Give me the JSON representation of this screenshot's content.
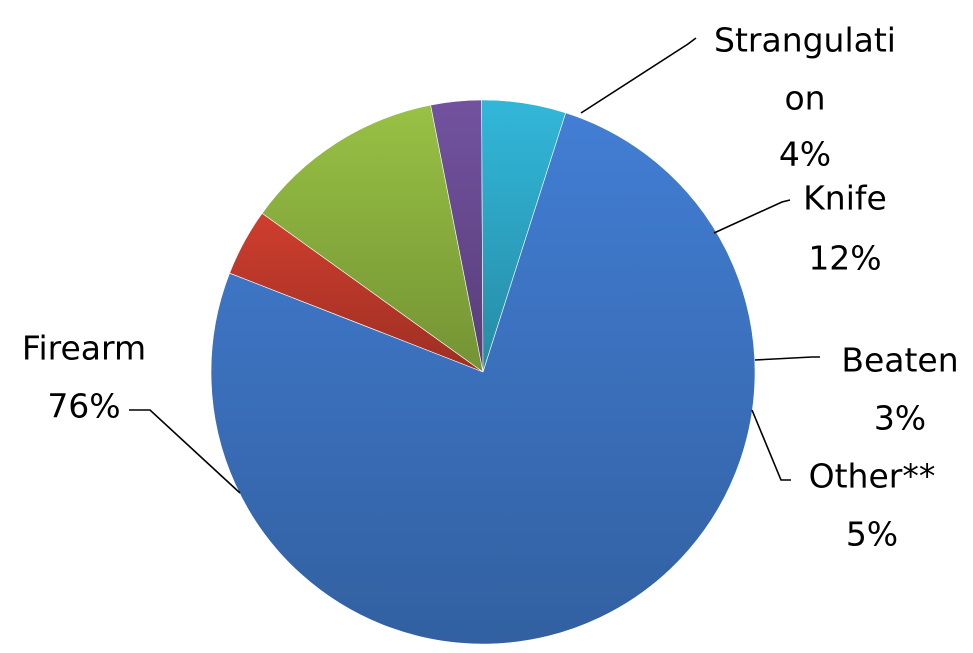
{
  "chart_data": {
    "type": "pie",
    "title": "",
    "slices": [
      {
        "name": "Strangulation",
        "label_lines": [
          "Strangulati",
          "on"
        ],
        "value": 4,
        "percent_label": "4%",
        "color": "#C0392B"
      },
      {
        "name": "Knife",
        "label_lines": [
          "Knife"
        ],
        "value": 12,
        "percent_label": "12%",
        "color": "#8DB33F"
      },
      {
        "name": "Beaten",
        "label_lines": [
          "Beaten"
        ],
        "value": 3,
        "percent_label": "3%",
        "color": "#6A4C93"
      },
      {
        "name": "Other**",
        "label_lines": [
          "Other**"
        ],
        "value": 5,
        "percent_label": "5%",
        "color": "#2EA9C9"
      },
      {
        "name": "Firearm",
        "label_lines": [
          "Firearm"
        ],
        "value": 76,
        "percent_label": "76%",
        "color": "#3D75C4"
      }
    ]
  }
}
